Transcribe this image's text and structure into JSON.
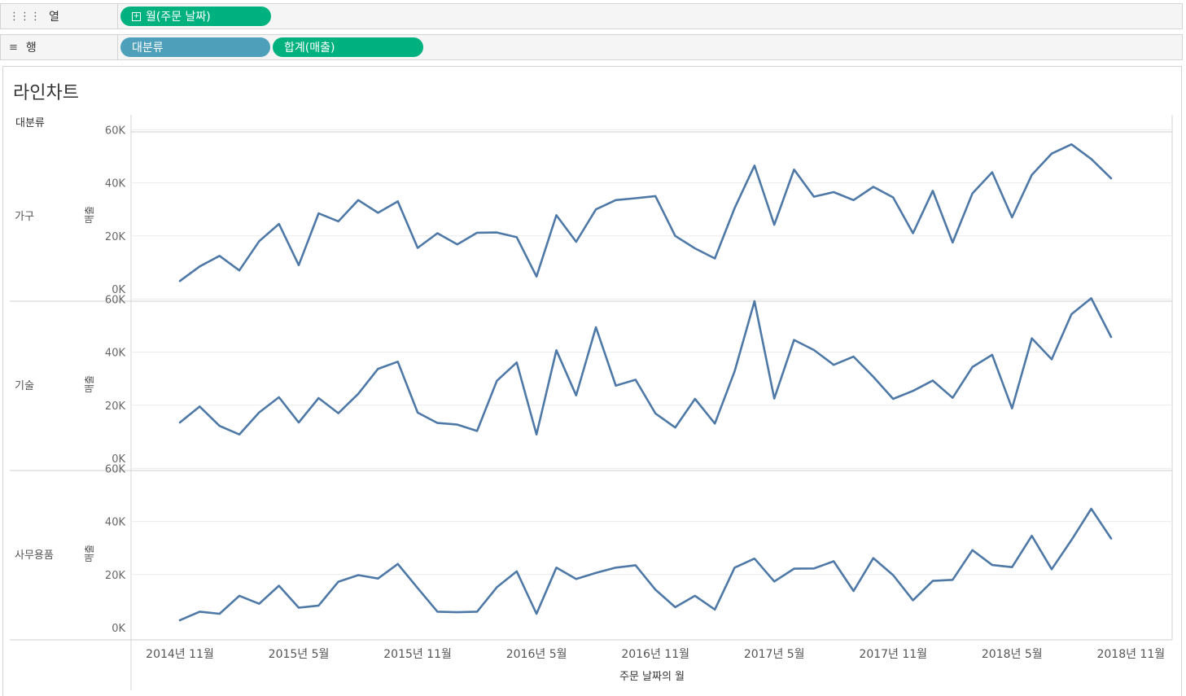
{
  "shelves": {
    "columns": {
      "icon": "columns-icon",
      "label": "열",
      "pills": [
        {
          "label": "월(주문 날짜)",
          "color": "#00b180",
          "icon": "expand-plus-icon"
        }
      ]
    },
    "rows": {
      "icon": "rows-icon",
      "label": "행",
      "pills": [
        {
          "label": "대분류",
          "color": "#4e9fba"
        },
        {
          "label": "합계(매출)",
          "color": "#00b180"
        }
      ]
    }
  },
  "sheet": {
    "title": "라인차트"
  },
  "chart_data": {
    "type": "line",
    "row_header_title": "대분류",
    "xlabel": "주문 날짜의 월",
    "ylabel": "매출",
    "line_color": "#4e79a7",
    "grid": true,
    "x_start": "2014년 11월",
    "x_ticks": [
      "2014년 11월",
      "2015년 5월",
      "2015년 11월",
      "2016년 5월",
      "2016년 11월",
      "2017년 5월",
      "2017년 11월",
      "2018년 5월",
      "2018년 11월"
    ],
    "y_ticks": [
      "0K",
      "20K",
      "40K",
      "60K"
    ],
    "ylim": [
      0,
      62000
    ],
    "panels": [
      {
        "category": "가구",
        "values": [
          3000,
          8500,
          12500,
          7000,
          18000,
          24500,
          9000,
          28500,
          25500,
          33500,
          28700,
          33000,
          15500,
          21000,
          16800,
          21200,
          21300,
          19500,
          4700,
          27800,
          17800,
          30000,
          33500,
          34200,
          35000,
          20000,
          15300,
          11500,
          30500,
          46500,
          24200,
          45000,
          34800,
          36500,
          33500,
          38500,
          34500,
          21000,
          37000,
          17500,
          36000,
          44000,
          27000,
          43000,
          51000,
          54500,
          49000,
          41700
        ]
      },
      {
        "category": "기술",
        "values": [
          13500,
          19500,
          12200,
          9000,
          17300,
          23000,
          13500,
          22700,
          17000,
          24300,
          33700,
          36400,
          17200,
          13300,
          12700,
          10300,
          29200,
          36100,
          9000,
          40700,
          23700,
          49400,
          27400,
          29600,
          16900,
          11600,
          22400,
          13100,
          32800,
          59200,
          22500,
          44600,
          40800,
          35200,
          38300,
          30700,
          22400,
          25400,
          29300,
          22800,
          34400,
          39000,
          18800,
          45200,
          37300,
          54300,
          60300,
          45700
        ]
      },
      {
        "category": "사무용품",
        "values": [
          2800,
          6000,
          5200,
          12000,
          9000,
          15800,
          7500,
          8300,
          17300,
          19800,
          18500,
          24000,
          14900,
          6000,
          5800,
          6000,
          15200,
          21200,
          5200,
          22600,
          18300,
          20600,
          22600,
          23500,
          14300,
          7700,
          12000,
          6800,
          22600,
          26000,
          17400,
          22200,
          22300,
          25000,
          13800,
          26200,
          19800,
          10300,
          17600,
          18000,
          29200,
          23600,
          22800,
          34600,
          22000,
          33000,
          44800,
          33600
        ]
      }
    ]
  }
}
